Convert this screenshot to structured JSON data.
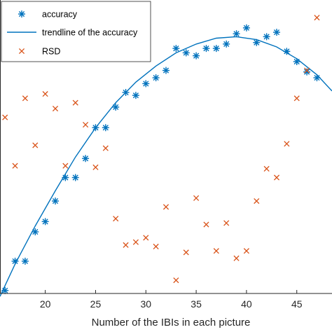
{
  "chart_data": {
    "type": "scatter",
    "title": "",
    "xlabel": "Number of the IBIs in each picture",
    "ylabel": "",
    "xlim": [
      15.5,
      48.5
    ],
    "ylim": [
      0,
      1
    ],
    "xticks": [
      "20",
      "25",
      "30",
      "35",
      "40",
      "45"
    ],
    "grid": false,
    "legend_placement": "top-left",
    "series": [
      {
        "name": "accuracy",
        "marker": "asterisk",
        "color": "#0072BD",
        "x": [
          16,
          17,
          18,
          19,
          20,
          21,
          22,
          23,
          24,
          25,
          26,
          27,
          28,
          29,
          30,
          31,
          32,
          33,
          34,
          35,
          36,
          37,
          38,
          39,
          40,
          41,
          42,
          43,
          44,
          45,
          46,
          47
        ],
        "y": [
          0.01,
          0.11,
          0.11,
          0.21,
          0.245,
          0.315,
          0.395,
          0.395,
          0.46,
          0.565,
          0.565,
          0.635,
          0.685,
          0.675,
          0.715,
          0.735,
          0.76,
          0.835,
          0.82,
          0.81,
          0.835,
          0.835,
          0.85,
          0.885,
          0.905,
          0.855,
          0.875,
          0.89,
          0.825,
          0.79,
          0.755,
          0.735
        ]
      },
      {
        "name": "trendline of the accuracy",
        "marker": "none",
        "color": "#0072BD",
        "fit": "quadratic",
        "x": [
          15.5,
          17,
          19,
          21,
          23,
          25,
          27,
          29,
          31,
          33,
          35,
          37,
          39,
          41,
          43,
          45,
          47,
          48.5
        ],
        "y": [
          -0.01,
          0.1,
          0.23,
          0.35,
          0.465,
          0.565,
          0.65,
          0.72,
          0.775,
          0.82,
          0.85,
          0.87,
          0.875,
          0.865,
          0.84,
          0.8,
          0.745,
          0.69
        ]
      },
      {
        "name": "RSD",
        "marker": "x",
        "color": "#D95319",
        "x": [
          16,
          17,
          18,
          19,
          20,
          21,
          22,
          23,
          24,
          25,
          26,
          27,
          28,
          29,
          30,
          31,
          32,
          33,
          34,
          35,
          36,
          37,
          38,
          39,
          40,
          41,
          42,
          43,
          44,
          45,
          46,
          47
        ],
        "y": [
          0.6,
          0.435,
          0.665,
          0.505,
          0.68,
          0.63,
          0.435,
          0.65,
          0.575,
          0.43,
          0.495,
          0.255,
          0.165,
          0.175,
          0.19,
          0.16,
          0.295,
          0.045,
          0.14,
          0.325,
          0.235,
          0.145,
          0.24,
          0.12,
          0.145,
          0.315,
          0.425,
          0.395,
          0.51,
          0.665,
          0.76,
          0.94
        ]
      }
    ]
  }
}
